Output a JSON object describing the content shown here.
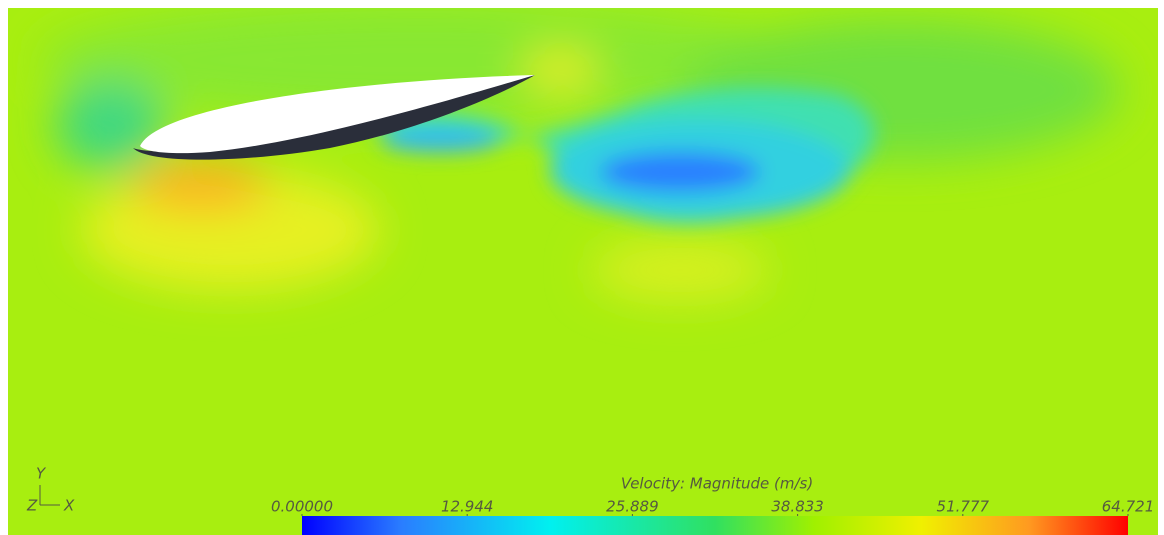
{
  "colorbar": {
    "title": "Velocity: Magnitude (m/s)",
    "range": [
      0,
      64.721
    ],
    "ticks": [
      {
        "value": 0,
        "label": "0.00000"
      },
      12.944,
      25.889,
      38.833,
      51.777,
      64.721
    ]
  },
  "axes_triad": {
    "y": "Y",
    "z": "Z",
    "x": "X"
  }
}
